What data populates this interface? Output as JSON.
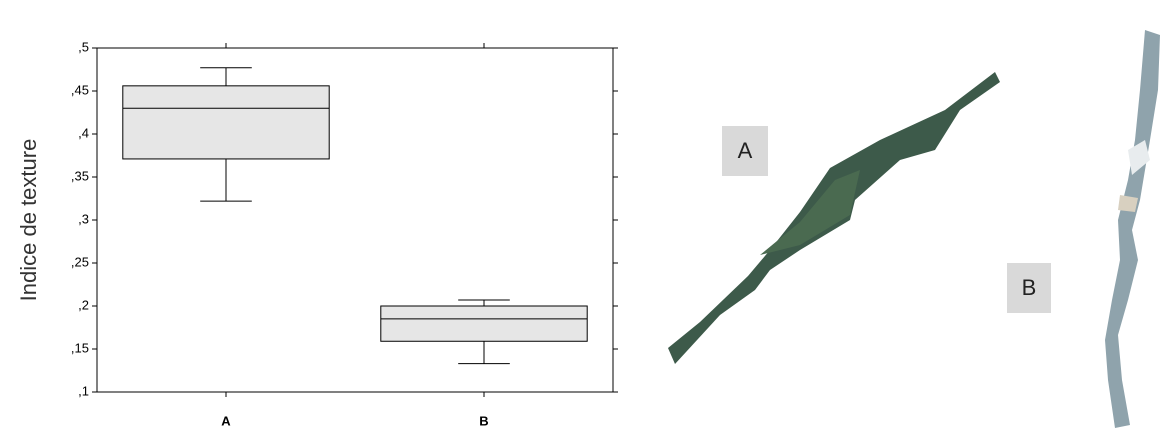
{
  "chart_data": {
    "type": "box",
    "ylabel": "Indice de texture",
    "categories": [
      "A",
      "B"
    ],
    "min": [
      0.322,
      0.133
    ],
    "q1": [
      0.371,
      0.159
    ],
    "median": [
      0.43,
      0.185
    ],
    "q3": [
      0.456,
      0.2
    ],
    "max": [
      0.477,
      0.207
    ],
    "color": "#e6e6e6",
    "ylim": [
      0.1,
      0.5
    ],
    "yticks": [
      {
        "value": 0.1,
        "label": ",1"
      },
      {
        "value": 0.15,
        "label": ",15"
      },
      {
        "value": 0.2,
        "label": ",2"
      },
      {
        "value": 0.25,
        "label": ",25"
      },
      {
        "value": 0.3,
        "label": ",3"
      },
      {
        "value": 0.35,
        "label": ",35"
      },
      {
        "value": 0.4,
        "label": ",4"
      },
      {
        "value": 0.45,
        "label": ",45"
      },
      {
        "value": 0.5,
        "label": ",5"
      }
    ]
  },
  "photos": [
    {
      "label": "A"
    },
    {
      "label": "B"
    }
  ]
}
